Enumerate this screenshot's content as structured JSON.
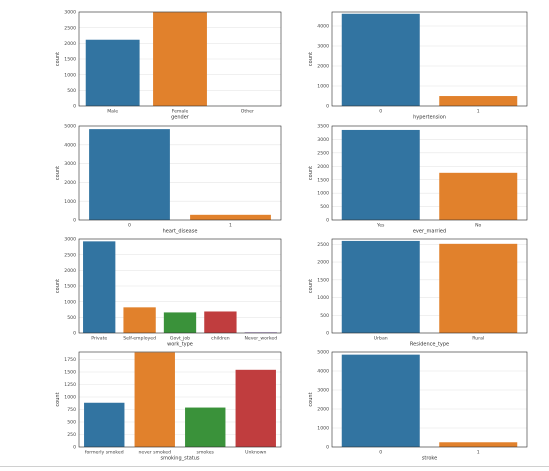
{
  "chart_data": [
    {
      "type": "bar",
      "categories": [
        "Male",
        "Female",
        "Other"
      ],
      "values": [
        2115,
        2994,
        1
      ],
      "xlabel": "gender",
      "ylabel": "count",
      "ylim": [
        0,
        3000
      ],
      "yticks": [
        0,
        500,
        1000,
        1500,
        2000,
        2500,
        3000
      ],
      "colors": [
        "#3274a1",
        "#e1812c",
        "#3a923a"
      ],
      "grid": true
    },
    {
      "type": "bar",
      "categories": [
        "0",
        "1"
      ],
      "values": [
        4612,
        498
      ],
      "xlabel": "hypertension",
      "ylabel": "count",
      "ylim": [
        0,
        4700
      ],
      "yticks": [
        0,
        1000,
        2000,
        3000,
        4000
      ],
      "colors": [
        "#3274a1",
        "#e1812c"
      ],
      "grid": true
    },
    {
      "type": "bar",
      "categories": [
        "0",
        "1"
      ],
      "values": [
        4834,
        276
      ],
      "xlabel": "heart_disease",
      "ylabel": "count",
      "ylim": [
        0,
        5000
      ],
      "yticks": [
        0,
        1000,
        2000,
        3000,
        4000,
        5000
      ],
      "colors": [
        "#3274a1",
        "#e1812c"
      ],
      "grid": true
    },
    {
      "type": "bar",
      "categories": [
        "Yes",
        "No"
      ],
      "values": [
        3353,
        1757
      ],
      "xlabel": "ever_married",
      "ylabel": "count",
      "ylim": [
        0,
        3500
      ],
      "yticks": [
        0,
        500,
        1000,
        1500,
        2000,
        2500,
        3000,
        3500
      ],
      "colors": [
        "#3274a1",
        "#e1812c"
      ],
      "grid": true
    },
    {
      "type": "bar",
      "categories": [
        "Private",
        "Self-employed",
        "Govt_job",
        "children",
        "Never_worked"
      ],
      "values": [
        2925,
        819,
        657,
        687,
        22
      ],
      "xlabel": "work_type",
      "ylabel": "count",
      "ylim": [
        0,
        3000
      ],
      "yticks": [
        0,
        500,
        1000,
        1500,
        2000,
        2500,
        3000
      ],
      "colors": [
        "#3274a1",
        "#e1812c",
        "#3a923a",
        "#c03d3e",
        "#9372b2"
      ],
      "grid": true
    },
    {
      "type": "bar",
      "categories": [
        "Urban",
        "Rural"
      ],
      "values": [
        2596,
        2514
      ],
      "xlabel": "Residence_type",
      "ylabel": "count",
      "ylim": [
        0,
        2650
      ],
      "yticks": [
        0,
        500,
        1000,
        1500,
        2000,
        2500
      ],
      "colors": [
        "#3274a1",
        "#e1812c"
      ],
      "grid": true
    },
    {
      "type": "bar",
      "categories": [
        "formerly smoked",
        "never smoked",
        "smokes",
        "Unknown"
      ],
      "values": [
        885,
        1892,
        789,
        1544
      ],
      "xlabel": "smoking_status",
      "ylabel": "count",
      "ylim": [
        0,
        1900
      ],
      "yticks": [
        0,
        250,
        500,
        750,
        1000,
        1250,
        1500,
        1750
      ],
      "colors": [
        "#3274a1",
        "#e1812c",
        "#3a923a",
        "#c03d3e"
      ],
      "grid": true
    },
    {
      "type": "bar",
      "categories": [
        "0",
        "1"
      ],
      "values": [
        4861,
        249
      ],
      "xlabel": "stroke",
      "ylabel": "count",
      "ylim": [
        0,
        5000
      ],
      "yticks": [
        0,
        1000,
        2000,
        3000,
        4000,
        5000
      ],
      "colors": [
        "#3274a1",
        "#e1812c"
      ],
      "grid": true
    }
  ]
}
